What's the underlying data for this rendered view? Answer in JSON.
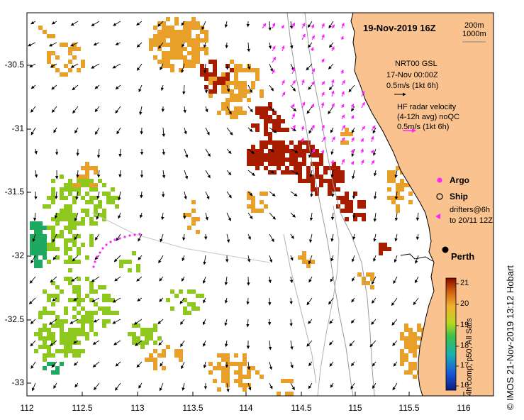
{
  "map": {
    "title": "19-Nov-2019 16Z",
    "scale_labels": [
      "200m",
      "1000m"
    ],
    "y_ticks": [
      "-30.5",
      "-31",
      "-31.5",
      "-32",
      "-32.5",
      "-33"
    ],
    "x_ticks": [
      "112",
      "112.5",
      "113",
      "113.5",
      "114",
      "114.5",
      "115",
      "115.5",
      "116"
    ],
    "legend": {
      "nrt_line1": "NRT00 GSL",
      "nrt_line2": "17-Nov 00:00Z",
      "nrt_line3": "0.5m/s (1kt 6h)",
      "hf_line1": "HF radar velocity",
      "hf_line2": "(4-12h avg) noQC",
      "hf_line3": "0.5m/s (1kt 6h)",
      "argo": "Argo",
      "ship": "Ship",
      "drifters_line1": "drifters@6h",
      "drifters_line2": "to 20/11 12Z"
    },
    "place": "Perth",
    "colorbar": {
      "ticks": [
        "21",
        "20",
        "19",
        "18",
        "17",
        "16"
      ],
      "title": "4h comp, p50, All Sats"
    },
    "credit": "© IMOS 21-Nov-2019 13:12 Hobart",
    "colors": {
      "land": "#f9c28e",
      "hf_arrow": "#ff22ff",
      "sst_21": "#a81c00",
      "sst_20": "#e8a02a",
      "sst_19": "#8ec81f",
      "sst_18": "#1ea860"
    }
  }
}
